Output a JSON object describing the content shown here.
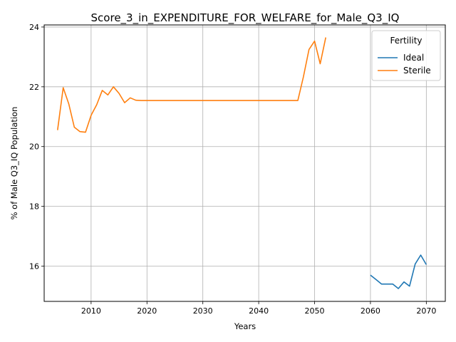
{
  "chart_data": {
    "type": "line",
    "title": "Score_3_in_EXPENDITURE_FOR_WELFARE_for_Male_Q3_IQ",
    "xlabel": "Years",
    "ylabel": "% of Male Q3_IQ Population",
    "xlim": [
      2001.6,
      2073.4
    ],
    "ylim": [
      14.82,
      24.07
    ],
    "x_ticks": [
      2010,
      2020,
      2030,
      2040,
      2050,
      2060,
      2070
    ],
    "y_ticks": [
      16,
      18,
      20,
      22,
      24
    ],
    "grid": true,
    "legend": {
      "title": "Fertility",
      "placement": "top-right"
    },
    "series": [
      {
        "name": "Ideal",
        "color": "#1f77b4",
        "x": [
          2060,
          2061,
          2062,
          2063,
          2064,
          2065,
          2066,
          2067,
          2068,
          2069,
          2070
        ],
        "y": [
          15.7,
          15.55,
          15.4,
          15.4,
          15.4,
          15.25,
          15.47,
          15.33,
          16.07,
          16.37,
          16.05
        ]
      },
      {
        "name": "Sterile",
        "color": "#ff7f0e",
        "x": [
          2004,
          2005,
          2006,
          2007,
          2008,
          2009,
          2010,
          2011,
          2012,
          2013,
          2014,
          2015,
          2016,
          2017,
          2018,
          2019,
          2020,
          2025,
          2030,
          2035,
          2040,
          2045,
          2046,
          2047,
          2048,
          2049,
          2050,
          2051,
          2052
        ],
        "y": [
          20.55,
          21.97,
          21.43,
          20.65,
          20.5,
          20.48,
          21.05,
          21.4,
          21.88,
          21.73,
          22.0,
          21.78,
          21.47,
          21.63,
          21.55,
          21.54,
          21.54,
          21.54,
          21.54,
          21.54,
          21.54,
          21.54,
          21.54,
          21.54,
          22.33,
          23.25,
          23.53,
          22.77,
          23.65
        ]
      }
    ]
  }
}
